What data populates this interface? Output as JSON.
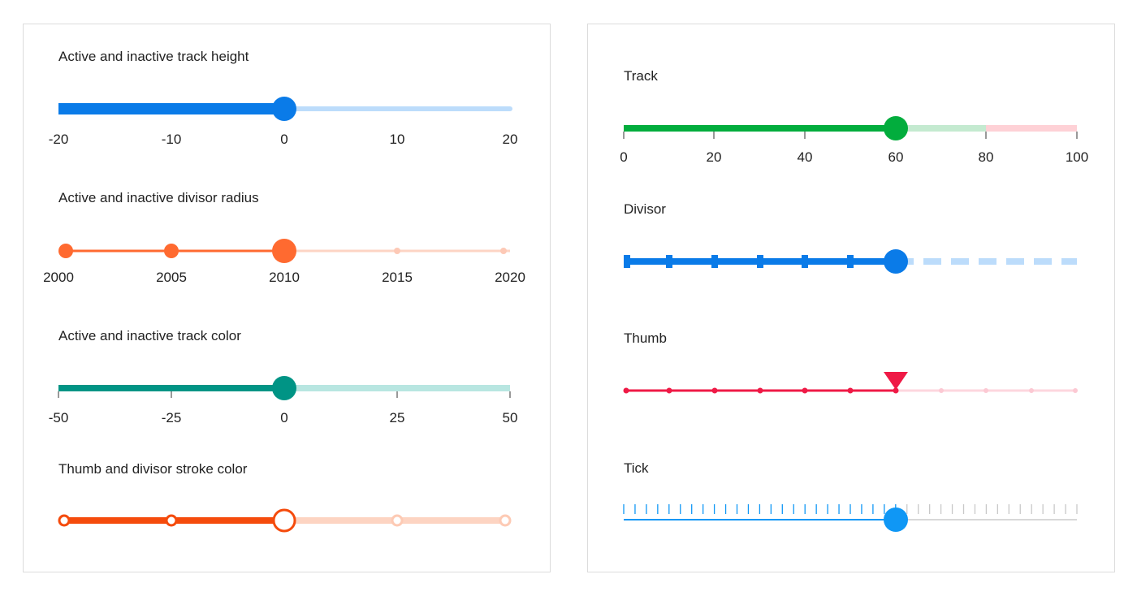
{
  "left_panel": {
    "sliders": [
      {
        "title": "Active and inactive track height",
        "min": -20,
        "max": 20,
        "value": 0,
        "labels": [
          "-20",
          "-10",
          "0",
          "10",
          "20"
        ],
        "active_color": "#0a7be8",
        "inactive_color": "#bcdcfb"
      },
      {
        "title": "Active and inactive divisor radius",
        "min": 2000,
        "max": 2020,
        "value": 2010,
        "labels": [
          "2000",
          "2005",
          "2010",
          "2015",
          "2020"
        ],
        "active_color": "#ff6a30",
        "inactive_color": "#fdd4c4"
      },
      {
        "title": "Active and inactive track color",
        "min": -50,
        "max": 50,
        "value": 0,
        "labels": [
          "-50",
          "-25",
          "0",
          "25",
          "50"
        ],
        "active_color": "#009485",
        "inactive_color": "#b8e6e1"
      },
      {
        "title": "Thumb and divisor stroke color",
        "min": 0,
        "max": 4,
        "value": 2,
        "labels": [],
        "active_color": "#f54b0c",
        "inactive_color": "#fdd4c2"
      }
    ]
  },
  "right_panel": {
    "sliders": [
      {
        "title": "Track",
        "min": 0,
        "max": 100,
        "value": 60,
        "labels": [
          "0",
          "20",
          "40",
          "60",
          "80",
          "100"
        ],
        "active_color": "#02ad3d",
        "inactive_color": "#c4ead0",
        "warning_color": "#fed1d6"
      },
      {
        "title": "Divisor",
        "min": 0,
        "max": 60,
        "value": 30,
        "labels": [],
        "active_color": "#0a7be8",
        "inactive_color": "#bcdcfb"
      },
      {
        "title": "Thumb",
        "min": 0,
        "max": 100,
        "value": 60,
        "labels": [],
        "active_color": "#ef1a46",
        "inactive_color": "#fdd6de"
      },
      {
        "title": "Tick",
        "min": 0,
        "max": 100,
        "value": 60,
        "labels": [],
        "active_color": "#0f97f5",
        "inactive_color": "#d8d8d8"
      }
    ]
  }
}
